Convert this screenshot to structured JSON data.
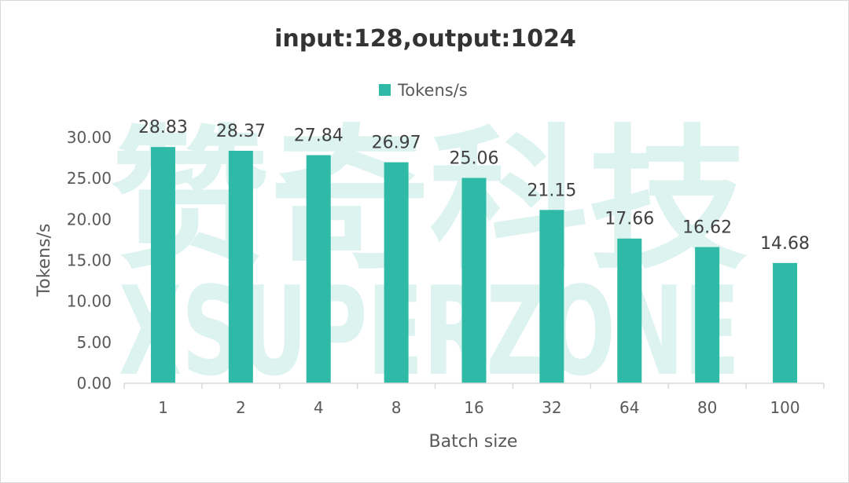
{
  "chart_data": {
    "type": "bar",
    "title": "input:128,output:1024",
    "xlabel": "Batch size",
    "ylabel": "Tokens/s",
    "categories": [
      "1",
      "2",
      "4",
      "8",
      "16",
      "32",
      "64",
      "80",
      "100"
    ],
    "series": [
      {
        "name": "Tokens/s",
        "color": "#2ebaa6",
        "values": [
          28.83,
          28.37,
          27.84,
          26.97,
          25.06,
          21.15,
          17.66,
          16.62,
          14.68
        ],
        "labels": [
          "28.83",
          "28.37",
          "27.84",
          "26.97",
          "25.06",
          "21.15",
          "17.66",
          "16.62",
          "14.68"
        ]
      }
    ],
    "ylim": [
      0,
      30
    ],
    "yticks": [
      "0.00",
      "5.00",
      "10.00",
      "15.00",
      "20.00",
      "25.00",
      "30.00"
    ],
    "legend_position": "top",
    "grid": false
  },
  "watermark": {
    "line1": "赞奇科技",
    "line2": "XSUPERZONE"
  }
}
